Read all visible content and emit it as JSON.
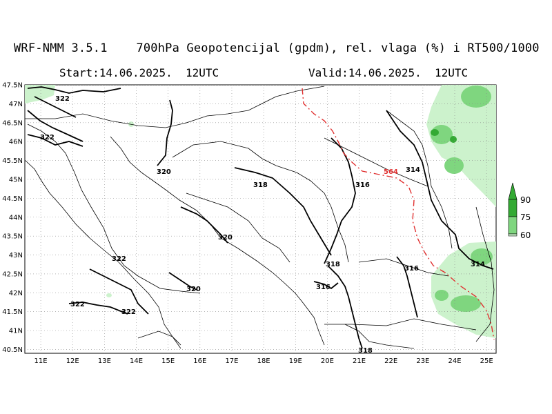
{
  "header": {
    "title": "WRF-NMM 3.5.1    700hPa Geopotencijal (gpdm), rel. vlaga (%) i RT500/1000",
    "start": "Start:14.06.2025.  12UTC",
    "valid": "Valid:14.06.2025.  12UTC"
  },
  "map": {
    "lat_labels": [
      "47.5N",
      "47N",
      "46.5N",
      "46N",
      "45.5N",
      "45N",
      "44.5N",
      "44N",
      "43.5N",
      "43N",
      "42.5N",
      "42N",
      "41.5N",
      "41N",
      "40.5N"
    ],
    "lon_labels": [
      "11E",
      "12E",
      "13E",
      "14E",
      "15E",
      "16E",
      "17E",
      "18E",
      "19E",
      "20E",
      "21E",
      "22E",
      "23E",
      "24E",
      "25E"
    ],
    "contour_labels": [
      "322",
      "322",
      "320",
      "318",
      "316",
      "314",
      "320",
      "322",
      "322",
      "322",
      "320",
      "318",
      "316",
      "316",
      "314",
      "318"
    ],
    "rt_label": "564"
  },
  "legend": {
    "levels": [
      "90",
      "75",
      "60"
    ],
    "colors": {
      "90": "#33aa33",
      "75": "#7fd67f",
      "60": "#ccf2cc"
    }
  },
  "colors": {
    "humidity_light": "#ccf2cc",
    "humidity_mid": "#7fd67f",
    "humidity_dark": "#33aa33",
    "rt_line": "#e03030"
  }
}
